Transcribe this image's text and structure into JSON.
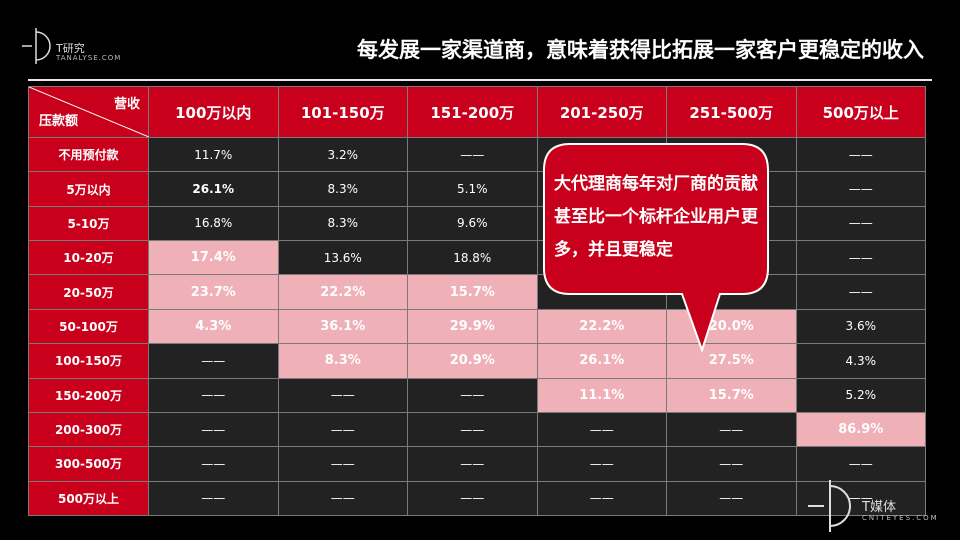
{
  "logo": {
    "brand": "T研究",
    "sub": "TANALYSE.COM"
  },
  "title": "每发展一家渠道商，意味着获得比拓展一家客户更稳定的收入",
  "table": {
    "corner_top": "营收",
    "corner_bottom": "压款额",
    "columns": [
      "100万以内",
      "101-150万",
      "151-200万",
      "201-250万",
      "251-500万",
      "500万以上"
    ],
    "rows": [
      {
        "label": "不用预付款",
        "cells": [
          "11.7%",
          "3.2%",
          "——",
          "",
          "",
          "——"
        ]
      },
      {
        "label": "5万以内",
        "cells": [
          "26.1%",
          "8.3%",
          "5.1%",
          "",
          "",
          "——"
        ]
      },
      {
        "label": "5-10万",
        "cells": [
          "16.8%",
          "8.3%",
          "9.6%",
          "",
          "",
          "——"
        ]
      },
      {
        "label": "10-20万",
        "cells": [
          "17.4%",
          "13.6%",
          "18.8%",
          "",
          "",
          "——"
        ]
      },
      {
        "label": "20-50万",
        "cells": [
          "23.7%",
          "22.2%",
          "15.7%",
          "",
          "",
          "——"
        ]
      },
      {
        "label": "50-100万",
        "cells": [
          "4.3%",
          "36.1%",
          "29.9%",
          "22.2%",
          "20.0%",
          "3.6%"
        ]
      },
      {
        "label": "100-150万",
        "cells": [
          "——",
          "8.3%",
          "20.9%",
          "26.1%",
          "27.5%",
          "4.3%"
        ]
      },
      {
        "label": "150-200万",
        "cells": [
          "——",
          "——",
          "——",
          "11.1%",
          "15.7%",
          "5.2%"
        ]
      },
      {
        "label": "200-300万",
        "cells": [
          "——",
          "——",
          "——",
          "——",
          "——",
          "86.9%"
        ]
      },
      {
        "label": "300-500万",
        "cells": [
          "——",
          "——",
          "——",
          "——",
          "——",
          "——"
        ]
      },
      {
        "label": "500万以上",
        "cells": [
          "——",
          "——",
          "——",
          "——",
          "——",
          "——"
        ]
      }
    ]
  },
  "callout": {
    "text": "大代理商每年对厂商的贡献甚至比一个标杆企业用户更多，并且更稳定"
  },
  "watermark": {
    "brand": "T媒体",
    "sub": "CNITEYES.COM"
  },
  "colors": {
    "red": "#c8001b",
    "pink": "#f0b0b8",
    "dark": "#222222"
  }
}
